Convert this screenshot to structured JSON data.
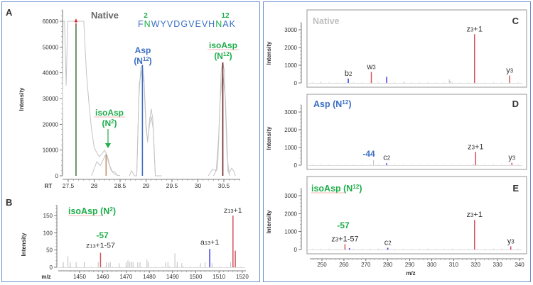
{
  "colors": {
    "frame": "#6b8fcc",
    "green": "#1fae4b",
    "blue": "#3a6fc4",
    "red": "#d4525f",
    "ionBlue": "#3b3bdd",
    "gray": "#bfbfbf",
    "darkRed": "#6a2323",
    "tan": "#c8926a",
    "darkGreen": "#4a7c4a"
  },
  "chart_data": [
    {
      "id": "A",
      "type": "line",
      "panel_label": "A",
      "title": "Native",
      "sequence": {
        "before": "F",
        "n2": "N",
        "middle": "WYVDGVEVH",
        "n12": "N",
        "after": "AK",
        "pos2": "2",
        "pos12": "12"
      },
      "xlabel": "RT",
      "ylabel": "Intensity",
      "xlim": [
        27.35,
        30.75
      ],
      "ylim": [
        0,
        64000
      ],
      "xticks": [
        "27.5",
        "28",
        "28.5",
        "29",
        "29.5",
        "30",
        "30.5"
      ],
      "xtick_values": [
        27.5,
        28,
        28.5,
        29,
        29.5,
        30,
        30.5
      ],
      "yticks": [
        "0",
        "10000",
        "20000",
        "30000",
        "40000",
        "50000",
        "60000"
      ],
      "ytick_values": [
        0,
        10000,
        20000,
        30000,
        40000,
        50000,
        60000
      ],
      "markers": [
        {
          "rt": 27.65,
          "value": 64000,
          "color": "darkGreen",
          "arrow": true
        },
        {
          "rt": 28.23,
          "value": 8000,
          "color": "tan"
        },
        {
          "rt": 28.93,
          "value": 43000,
          "color": "blue"
        },
        {
          "rt": 30.48,
          "value": 44000,
          "color": "darkRed"
        }
      ],
      "traces": [
        {
          "name": "trace1",
          "points": [
            [
              27.38,
              0
            ],
            [
              27.4,
              64000
            ],
            [
              27.43,
              64000
            ],
            [
              27.46,
              35000
            ],
            [
              27.49,
              64000
            ],
            [
              27.52,
              64000
            ],
            [
              27.8,
              64000
            ],
            [
              27.85,
              40000
            ],
            [
              27.9,
              28000
            ],
            [
              27.95,
              18000
            ],
            [
              28.0,
              11000
            ],
            [
              28.05,
              9000
            ],
            [
              28.1,
              7500
            ],
            [
              28.15,
              8500
            ],
            [
              28.2,
              10000
            ],
            [
              28.25,
              8000
            ],
            [
              28.3,
              4000
            ],
            [
              28.35,
              1500
            ],
            [
              28.4,
              500
            ],
            [
              28.5,
              0
            ]
          ]
        },
        {
          "name": "trace2",
          "points": [
            [
              27.95,
              0
            ],
            [
              28.05,
              5500
            ],
            [
              28.12,
              4000
            ],
            [
              28.18,
              6500
            ],
            [
              28.23,
              8500
            ],
            [
              28.28,
              5000
            ],
            [
              28.33,
              2000
            ],
            [
              28.4,
              1500
            ],
            [
              28.45,
              0
            ]
          ]
        },
        {
          "name": "trace3",
          "points": [
            [
              28.68,
              0
            ],
            [
              28.72,
              2000
            ],
            [
              28.78,
              0
            ],
            [
              28.82,
              0
            ],
            [
              28.86,
              30000
            ],
            [
              28.9,
              42000
            ],
            [
              28.93,
              43000
            ],
            [
              28.96,
              38000
            ],
            [
              29.0,
              20000
            ],
            [
              29.03,
              13000
            ],
            [
              29.07,
              22000
            ],
            [
              29.1,
              26000
            ],
            [
              29.13,
              22000
            ],
            [
              29.18,
              0
            ],
            [
              29.3,
              0
            ]
          ]
        },
        {
          "name": "trace4",
          "points": [
            [
              28.82,
              0
            ],
            [
              28.87,
              36000
            ],
            [
              28.92,
              41000
            ],
            [
              28.96,
              36000
            ],
            [
              29.0,
              18000
            ],
            [
              29.03,
              14000
            ],
            [
              29.07,
              20000
            ],
            [
              29.1,
              23000
            ],
            [
              29.14,
              18000
            ],
            [
              29.18,
              0
            ]
          ]
        },
        {
          "name": "trace5",
          "points": [
            [
              30.2,
              0
            ],
            [
              30.28,
              2500
            ],
            [
              30.35,
              2000
            ],
            [
              30.4,
              15000
            ],
            [
              30.45,
              41000
            ],
            [
              30.48,
              44000
            ],
            [
              30.51,
              41000
            ],
            [
              30.56,
              8000
            ],
            [
              30.6,
              1000
            ],
            [
              30.65,
              3000
            ],
            [
              30.7,
              1500
            ],
            [
              30.72,
              0
            ]
          ]
        },
        {
          "name": "trace6",
          "points": [
            [
              30.3,
              0
            ],
            [
              30.38,
              3000
            ],
            [
              30.43,
              30000
            ],
            [
              30.48,
              40000
            ],
            [
              30.53,
              30000
            ],
            [
              30.58,
              2000
            ],
            [
              30.62,
              0
            ]
          ]
        }
      ],
      "annotations": [
        {
          "id": "asp",
          "line1": "Asp",
          "line2_base": "(N",
          "line2_sup": "12",
          "line2_end": ")",
          "color": "blue"
        },
        {
          "id": "isoasp12",
          "line1": "isoAsp",
          "line2_base": "(N",
          "line2_sup": "12",
          "line2_end": ")",
          "color": "green"
        },
        {
          "id": "isoasp2",
          "line1": "isoAsp",
          "line2_base": "(N",
          "line2_sup": "2",
          "line2_end": ")",
          "color": "green"
        }
      ]
    },
    {
      "id": "B",
      "type": "bar",
      "panel_label": "B",
      "title": {
        "base": "isoAsp (N",
        "sup": "2",
        "end": ")"
      },
      "xlabel": "m/z",
      "ylabel": "Intensity",
      "xlim": [
        1440,
        1523
      ],
      "ylim": [
        0,
        180
      ],
      "xticks": [
        "1450",
        "1460",
        "1470",
        "1480",
        "1490",
        "1500",
        "1510",
        "1520"
      ],
      "xtick_values": [
        1450,
        1460,
        1470,
        1480,
        1490,
        1500,
        1510,
        1520
      ],
      "yticks": [
        "0",
        "50",
        "100",
        "150"
      ],
      "ytick_values": [
        0,
        50,
        100,
        150
      ],
      "peaks": [
        {
          "mz": 1443,
          "value": 15,
          "color": "gray"
        },
        {
          "mz": 1445,
          "value": 32,
          "color": "gray"
        },
        {
          "mz": 1446,
          "value": 15,
          "color": "gray"
        },
        {
          "mz": 1448.5,
          "value": 15,
          "color": "gray"
        },
        {
          "mz": 1452,
          "value": 15,
          "color": "gray"
        },
        {
          "mz": 1458,
          "value": 15,
          "color": "gray"
        },
        {
          "mz": 1459,
          "value": 42,
          "color": "red"
        },
        {
          "mz": 1461.5,
          "value": 15,
          "color": "gray"
        },
        {
          "mz": 1462.5,
          "value": 13,
          "color": "gray"
        },
        {
          "mz": 1463.2,
          "value": 15,
          "color": "gray"
        },
        {
          "mz": 1467,
          "value": 12,
          "color": "gray"
        },
        {
          "mz": 1470,
          "value": 14,
          "color": "gray"
        },
        {
          "mz": 1470.8,
          "value": 20,
          "color": "gray"
        },
        {
          "mz": 1471.6,
          "value": 15,
          "color": "gray"
        },
        {
          "mz": 1472.3,
          "value": 16,
          "color": "gray"
        },
        {
          "mz": 1473,
          "value": 15,
          "color": "gray"
        },
        {
          "mz": 1475,
          "value": 14,
          "color": "gray"
        },
        {
          "mz": 1476,
          "value": 15,
          "color": "gray"
        },
        {
          "mz": 1479,
          "value": 22,
          "color": "gray"
        },
        {
          "mz": 1479.5,
          "value": 15,
          "color": "gray"
        },
        {
          "mz": 1487,
          "value": 14,
          "color": "gray"
        },
        {
          "mz": 1488,
          "value": 15,
          "color": "gray"
        },
        {
          "mz": 1491,
          "value": 40,
          "color": "gray"
        },
        {
          "mz": 1492,
          "value": 15,
          "color": "gray"
        },
        {
          "mz": 1494,
          "value": 12,
          "color": "gray"
        },
        {
          "mz": 1502,
          "value": 12,
          "color": "gray"
        },
        {
          "mz": 1504,
          "value": 15,
          "color": "gray"
        },
        {
          "mz": 1506,
          "value": 53,
          "color": "ionBlue"
        },
        {
          "mz": 1507,
          "value": 12,
          "color": "gray"
        },
        {
          "mz": 1515,
          "value": 15,
          "color": "gray"
        },
        {
          "mz": 1516,
          "value": 150,
          "color": "red"
        },
        {
          "mz": 1517,
          "value": 48,
          "color": "red"
        }
      ],
      "labels": [
        {
          "mz": 1516,
          "value": 150,
          "base": "z",
          "sub": "13",
          "end": "+1"
        },
        {
          "mz": 1506,
          "value": 53,
          "base": "a",
          "sub": "13",
          "end": "+1"
        },
        {
          "mz": 1459,
          "value": 42,
          "base": "z",
          "sub": "13",
          "end": "+1-57"
        }
      ],
      "delta_label": "-57"
    },
    {
      "id": "C",
      "type": "bar",
      "panel_label": "C",
      "title": {
        "base": "Native",
        "sup": "",
        "end": ""
      },
      "title_color": "gray",
      "ylabel": "Intensity",
      "xlim": [
        245,
        342
      ],
      "ylim": [
        0,
        3400
      ],
      "yticks": [
        "0",
        "1000",
        "2000",
        "3000"
      ],
      "ytick_values": [
        0,
        1000,
        2000,
        3000
      ],
      "peaks": [
        {
          "mz": 249.5,
          "value": 60,
          "color": "gray"
        },
        {
          "mz": 262,
          "value": 250,
          "color": "ionBlue"
        },
        {
          "mz": 272.5,
          "value": 620,
          "color": "red"
        },
        {
          "mz": 279.5,
          "value": 350,
          "color": "ionBlue"
        },
        {
          "mz": 287.5,
          "value": 50,
          "color": "gray"
        },
        {
          "mz": 308,
          "value": 200,
          "color": "gray"
        },
        {
          "mz": 308.5,
          "value": 120,
          "color": "gray"
        },
        {
          "mz": 319.5,
          "value": 2750,
          "color": "red"
        },
        {
          "mz": 335.5,
          "value": 420,
          "color": "red"
        }
      ],
      "labels": [
        {
          "mz": 262,
          "value": 250,
          "base": "b",
          "sub": "2",
          "end": ""
        },
        {
          "mz": 272.5,
          "value": 620,
          "base": "w",
          "sub": "3",
          "end": ""
        },
        {
          "mz": 319.5,
          "value": 2750,
          "base": "z",
          "sub": "3",
          "end": "+1"
        },
        {
          "mz": 335.5,
          "value": 420,
          "base": "y",
          "sub": "3",
          "end": ""
        }
      ]
    },
    {
      "id": "D",
      "type": "bar",
      "panel_label": "D",
      "title": {
        "base": "Asp (N",
        "sup": "12",
        "end": ")"
      },
      "title_color": "blue",
      "ylabel": "Intensity",
      "xlim": [
        245,
        342
      ],
      "ylim": [
        0,
        3400
      ],
      "yticks": [
        "0",
        "1000",
        "2000",
        "3000"
      ],
      "ytick_values": [
        0,
        1000,
        2000,
        3000
      ],
      "peaks": [
        {
          "mz": 273.5,
          "value": 280,
          "color": "gray"
        },
        {
          "mz": 279.5,
          "value": 110,
          "color": "ionBlue"
        },
        {
          "mz": 319,
          "value": 70,
          "color": "gray"
        },
        {
          "mz": 320,
          "value": 750,
          "color": "red"
        },
        {
          "mz": 336.5,
          "value": 140,
          "color": "red"
        }
      ],
      "labels": [
        {
          "mz": 279.5,
          "value": 110,
          "base": "c",
          "sub": "2",
          "end": ""
        },
        {
          "mz": 320,
          "value": 750,
          "base": "z",
          "sub": "3",
          "end": "+1"
        },
        {
          "mz": 336.5,
          "value": 140,
          "base": "y",
          "sub": "3",
          "end": ""
        }
      ],
      "delta_label": "-44"
    },
    {
      "id": "E",
      "type": "bar",
      "panel_label": "E",
      "title": {
        "base": "isoAsp (N",
        "sup": "12",
        "end": ")"
      },
      "title_color": "green",
      "xlabel": "m/z",
      "ylabel": "Intensity",
      "xlim": [
        245,
        342
      ],
      "ylim": [
        0,
        3400
      ],
      "xticks": [
        "250",
        "260",
        "270",
        "280",
        "290",
        "300",
        "310",
        "320",
        "330",
        "340"
      ],
      "xtick_values": [
        250,
        260,
        270,
        280,
        290,
        300,
        310,
        320,
        330,
        340
      ],
      "yticks": [
        "0",
        "1000",
        "2000",
        "3000"
      ],
      "ytick_values": [
        0,
        1000,
        2000,
        3000
      ],
      "peaks": [
        {
          "mz": 260.5,
          "value": 300,
          "color": "red"
        },
        {
          "mz": 262.5,
          "value": 80,
          "color": "ionBlue"
        },
        {
          "mz": 280,
          "value": 100,
          "color": "ionBlue"
        },
        {
          "mz": 319.5,
          "value": 1650,
          "color": "red"
        },
        {
          "mz": 336,
          "value": 180,
          "color": "red"
        }
      ],
      "labels": [
        {
          "mz": 260.5,
          "value": 300,
          "base": "z",
          "sub": "3",
          "end": "+1-57"
        },
        {
          "mz": 280,
          "value": 100,
          "base": "c",
          "sub": "2",
          "end": ""
        },
        {
          "mz": 319.5,
          "value": 1650,
          "base": "z",
          "sub": "3",
          "end": "+1"
        },
        {
          "mz": 336,
          "value": 180,
          "base": "y",
          "sub": "3",
          "end": ""
        }
      ],
      "delta_label": "-57"
    }
  ]
}
